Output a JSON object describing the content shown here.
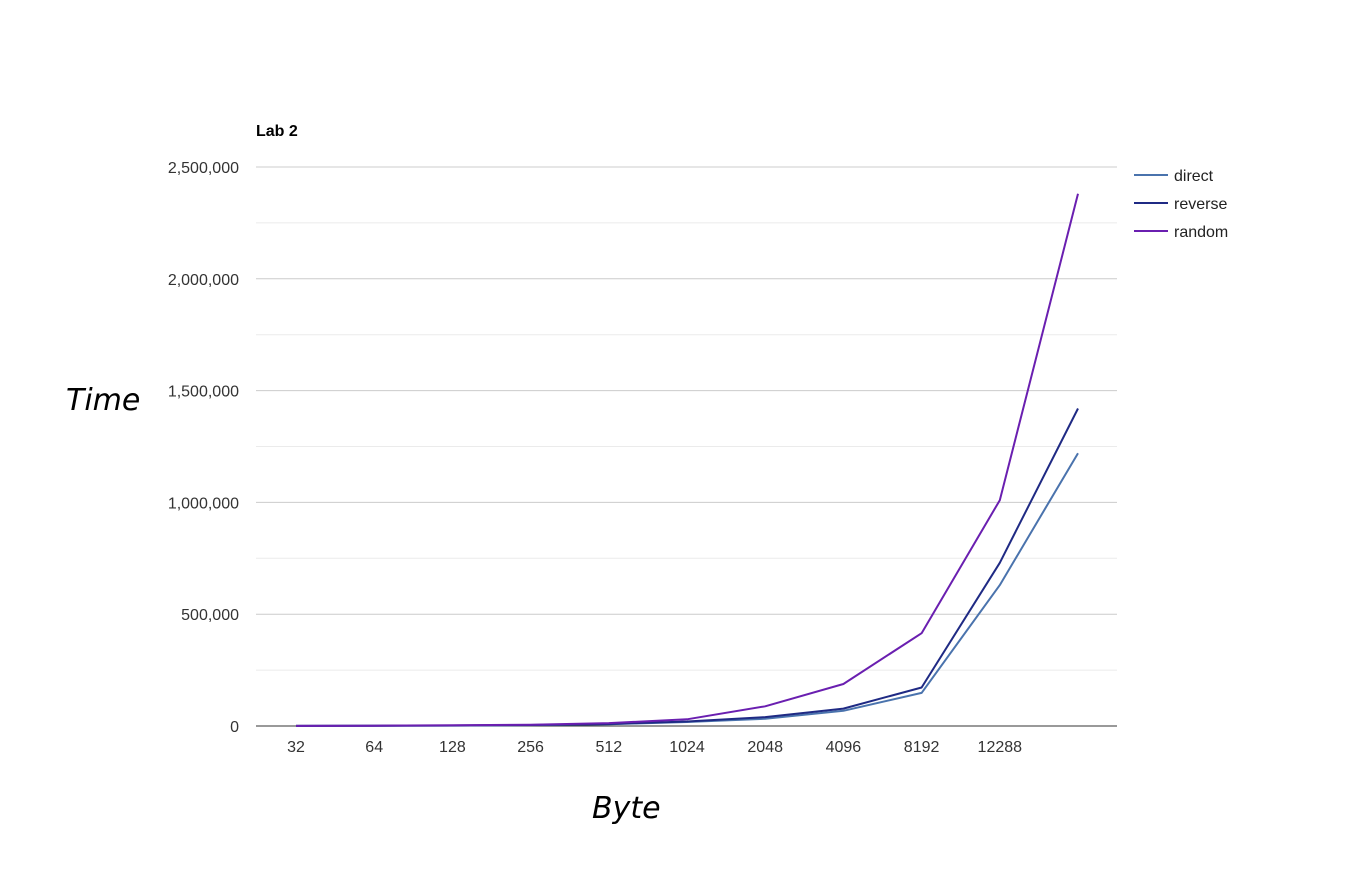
{
  "chart_data": {
    "type": "line",
    "title": "Lab 2",
    "xlabel": "Byte",
    "ylabel": "Time",
    "categories": [
      "32",
      "64",
      "128",
      "256",
      "512",
      "1024",
      "2048",
      "4096",
      "8192",
      "12288",
      ""
    ],
    "ylim": [
      0,
      2500000
    ],
    "yticks": [
      0,
      500000,
      1000000,
      1500000,
      2000000,
      2500000
    ],
    "ytick_labels": [
      "0",
      "500,000",
      "1,000,000",
      "1,500,000",
      "2,000,000",
      "2,500,000"
    ],
    "grid": true,
    "legend_position": "right",
    "series": [
      {
        "name": "direct",
        "color": "#4a73ad",
        "values": [
          300,
          800,
          2000,
          4000,
          8000,
          18000,
          32000,
          68000,
          148000,
          630000,
          1220000
        ]
      },
      {
        "name": "reverse",
        "color": "#1f2a84",
        "values": [
          300,
          900,
          2200,
          4500,
          9000,
          20000,
          40000,
          78000,
          172000,
          730000,
          1420000
        ]
      },
      {
        "name": "random",
        "color": "#6a1fb0",
        "values": [
          400,
          1200,
          3000,
          6000,
          13000,
          30000,
          88000,
          188000,
          415000,
          1010000,
          2380000
        ]
      }
    ]
  }
}
